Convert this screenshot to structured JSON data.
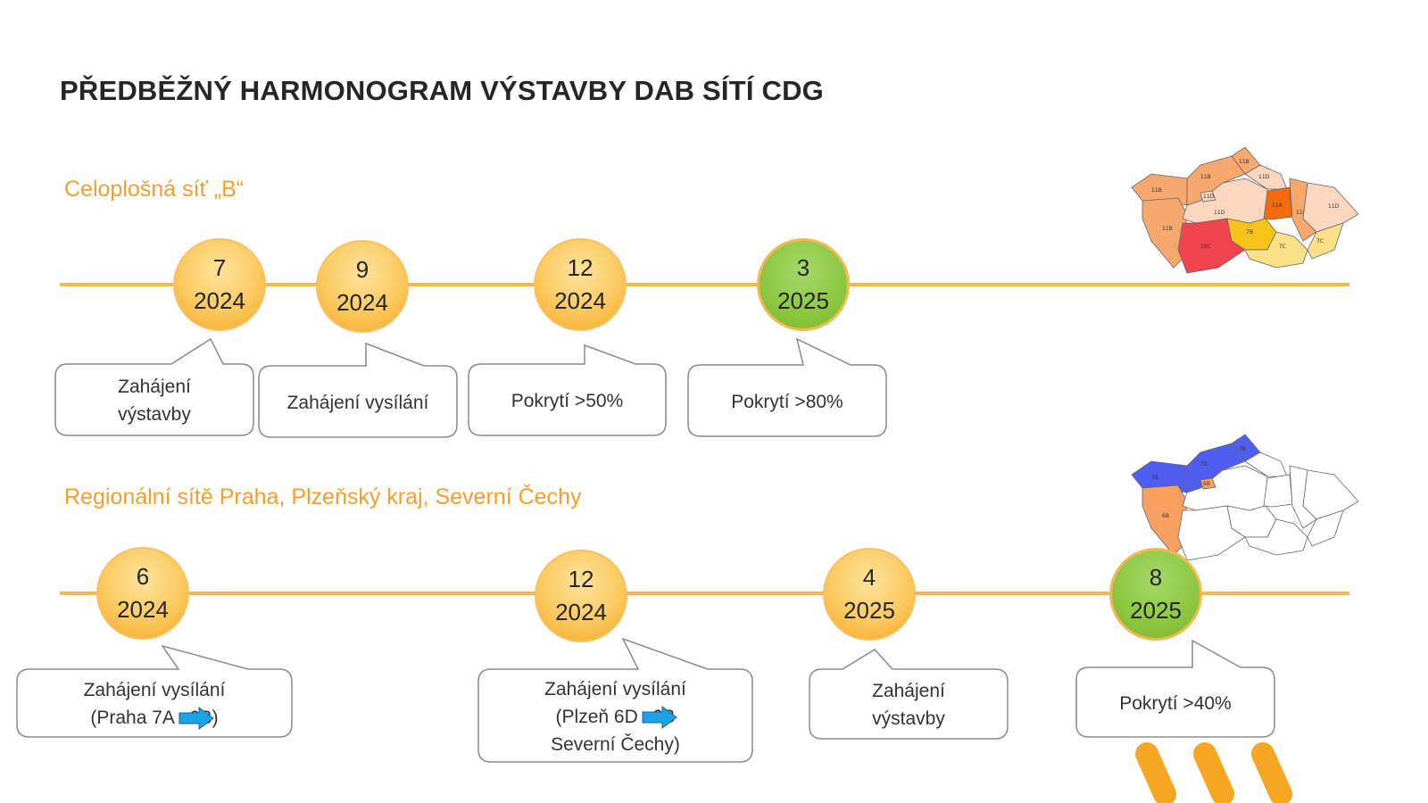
{
  "title": "PŘEDBĚŽNÝ HARMONOGRAM VÝSTAVBY DAB SÍTÍ CDG",
  "colors": {
    "accent_orange": "#f0a030",
    "timeline": "#f5b850",
    "milestone_orange": "#fbc95f",
    "milestone_green": "#8cc63f",
    "arrow_blue": "#1ca3e6"
  },
  "section_b": {
    "heading": "Celoplošná síť „B“",
    "milestones": [
      {
        "month": "7",
        "year": "2024",
        "color": "orange",
        "label_lines": [
          "Zahájení",
          "výstavby"
        ]
      },
      {
        "month": "9",
        "year": "2024",
        "color": "orange",
        "label_lines": [
          "Zahájení vysílání"
        ]
      },
      {
        "month": "12",
        "year": "2024",
        "color": "orange",
        "label_lines": [
          "Pokrytí >50%"
        ]
      },
      {
        "month": "3",
        "year": "2025",
        "color": "green",
        "label_lines": [
          "Pokrytí >80%"
        ]
      }
    ],
    "map_labels": [
      "11B",
      "11B",
      "11B",
      "11B",
      "11D",
      "11D",
      "11D",
      "11A",
      "11B",
      "11D",
      "10C",
      "7B",
      "7C",
      "7C"
    ]
  },
  "section_regional": {
    "heading": "Regionální sítě Praha, Plzeňský kraj, Severní Čechy",
    "milestones": [
      {
        "month": "6",
        "year": "2024",
        "color": "orange",
        "label_lines": [
          "Zahájení vysílání",
          "(Praha 7A",
          "6B)"
        ]
      },
      {
        "month": "12",
        "year": "2024",
        "color": "orange",
        "label_lines": [
          "Zahájení vysílání",
          "(Plzeň 6D",
          "6B",
          "Severní Čechy)"
        ]
      },
      {
        "month": "4",
        "year": "2025",
        "color": "orange",
        "label_lines": [
          "Zahájení",
          "výstavby"
        ]
      },
      {
        "month": "8",
        "year": "2025",
        "color": "green",
        "label_lines": [
          "Pokrytí >40%"
        ]
      }
    ],
    "map_labels": [
      "7B",
      "7B",
      "7B",
      "6B",
      "6B"
    ]
  }
}
